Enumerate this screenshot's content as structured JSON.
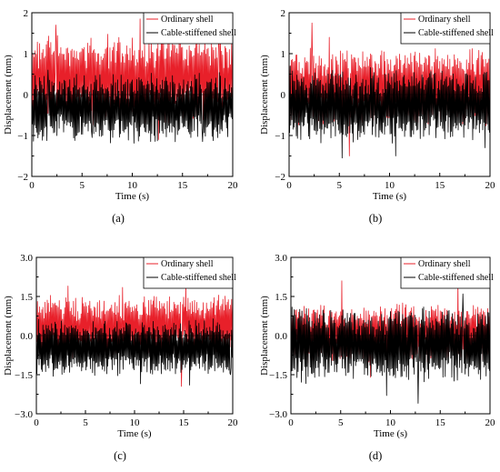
{
  "colors": {
    "ordinary": "#e8202a",
    "cable": "#000000",
    "axis": "#000000"
  },
  "chart_data": [
    {
      "type": "line",
      "caption": "(a)",
      "seed": 11,
      "xlabel": "Time (s)",
      "ylabel": "Displacement (mm)",
      "xlim": [
        0,
        20
      ],
      "ylim": [
        -2,
        2
      ],
      "xticks": [
        0,
        5,
        10,
        15,
        20
      ],
      "xtick_labels": [
        "0",
        "5",
        "10",
        "15",
        "20"
      ],
      "yticks": [
        -2,
        -1,
        0,
        1,
        2
      ],
      "ytick_labels": [
        "−2",
        "−1",
        "0",
        "1",
        "2"
      ],
      "legend_position": "top-right",
      "series": [
        {
          "name": "Ordinary shell",
          "color": "#e8202a",
          "offset": 0.35,
          "amplitude": 0.95,
          "peaks": [
            [
              2.4,
              1.7
            ],
            [
              10.8,
              1.85
            ],
            [
              18.6,
              1.5
            ],
            [
              12.6,
              -1.1
            ]
          ]
        },
        {
          "name": "Cable-stiffened shell",
          "color": "#000000",
          "offset": -0.3,
          "amplitude": 0.75,
          "peaks": [
            [
              1.6,
              0.6
            ],
            [
              17.0,
              -1.15
            ],
            [
              6.0,
              -1.05
            ]
          ]
        }
      ]
    },
    {
      "type": "line",
      "caption": "(b)",
      "seed": 23,
      "xlabel": "Time (s)",
      "ylabel": "Displacement (mm)",
      "xlim": [
        0,
        20
      ],
      "ylim": [
        -2,
        2
      ],
      "xticks": [
        0,
        5,
        10,
        15,
        20
      ],
      "xtick_labels": [
        "0",
        "5",
        "10",
        "15",
        "20"
      ],
      "yticks": [
        -2,
        -1,
        0,
        1,
        2
      ],
      "ytick_labels": [
        "−2",
        "−1",
        "0",
        "1",
        "2"
      ],
      "legend_position": "top-right",
      "series": [
        {
          "name": "Ordinary shell",
          "color": "#e8202a",
          "offset": 0.2,
          "amplitude": 0.85,
          "peaks": [
            [
              2.3,
              1.75
            ],
            [
              4.0,
              1.4
            ],
            [
              18.0,
              1.1
            ],
            [
              6.0,
              -1.5
            ]
          ]
        },
        {
          "name": "Cable-stiffened shell",
          "color": "#000000",
          "offset": -0.25,
          "amplitude": 0.8,
          "peaks": [
            [
              5.3,
              -1.55
            ],
            [
              10.6,
              -1.5
            ],
            [
              19.5,
              -1.3
            ]
          ]
        }
      ]
    },
    {
      "type": "line",
      "caption": "(c)",
      "seed": 37,
      "xlabel": "Time (s)",
      "ylabel": "Displacement (mm)",
      "xlim": [
        0,
        20
      ],
      "ylim": [
        -3,
        3
      ],
      "xticks": [
        0,
        5,
        10,
        15,
        20
      ],
      "xtick_labels": [
        "0",
        "5",
        "10",
        "15",
        "20"
      ],
      "yticks": [
        -3,
        -1.5,
        0,
        1.5,
        3
      ],
      "ytick_labels": [
        "−3.0",
        "−1.5",
        "0.0",
        "1.5",
        "3.0"
      ],
      "legend_position": "top-right",
      "series": [
        {
          "name": "Ordinary shell",
          "color": "#e8202a",
          "offset": 0.35,
          "amplitude": 1.05,
          "peaks": [
            [
              3.2,
              1.9
            ],
            [
              8.8,
              1.85
            ],
            [
              15.2,
              2.1
            ],
            [
              14.8,
              -1.95
            ]
          ]
        },
        {
          "name": "Cable-stiffened shell",
          "color": "#000000",
          "offset": -0.45,
          "amplitude": 0.95,
          "peaks": [
            [
              10.6,
              -1.85
            ],
            [
              15.6,
              -1.9
            ],
            [
              19.8,
              -1.5
            ]
          ]
        }
      ]
    },
    {
      "type": "line",
      "caption": "(d)",
      "seed": 53,
      "xlabel": "Time (s)",
      "ylabel": "Displacement (mm)",
      "xlim": [
        0,
        20
      ],
      "ylim": [
        -3,
        3
      ],
      "xticks": [
        0,
        5,
        10,
        15,
        20
      ],
      "xtick_labels": [
        "0",
        "5",
        "10",
        "15",
        "20"
      ],
      "yticks": [
        -3,
        -1.5,
        0,
        1.5,
        3
      ],
      "ytick_labels": [
        "−3.0",
        "−1.5",
        "0.0",
        "1.5",
        "3.0"
      ],
      "legend_position": "top-right",
      "series": [
        {
          "name": "Ordinary shell",
          "color": "#e8202a",
          "offset": 0.1,
          "amplitude": 1.0,
          "peaks": [
            [
              5.1,
              2.1
            ],
            [
              16.8,
              2.1
            ],
            [
              8.0,
              -1.6
            ]
          ]
        },
        {
          "name": "Cable-stiffened shell",
          "color": "#000000",
          "offset": -0.35,
          "amplitude": 1.25,
          "peaks": [
            [
              12.8,
              -2.6
            ],
            [
              9.6,
              -2.3
            ],
            [
              17.3,
              1.6
            ]
          ]
        }
      ]
    }
  ]
}
